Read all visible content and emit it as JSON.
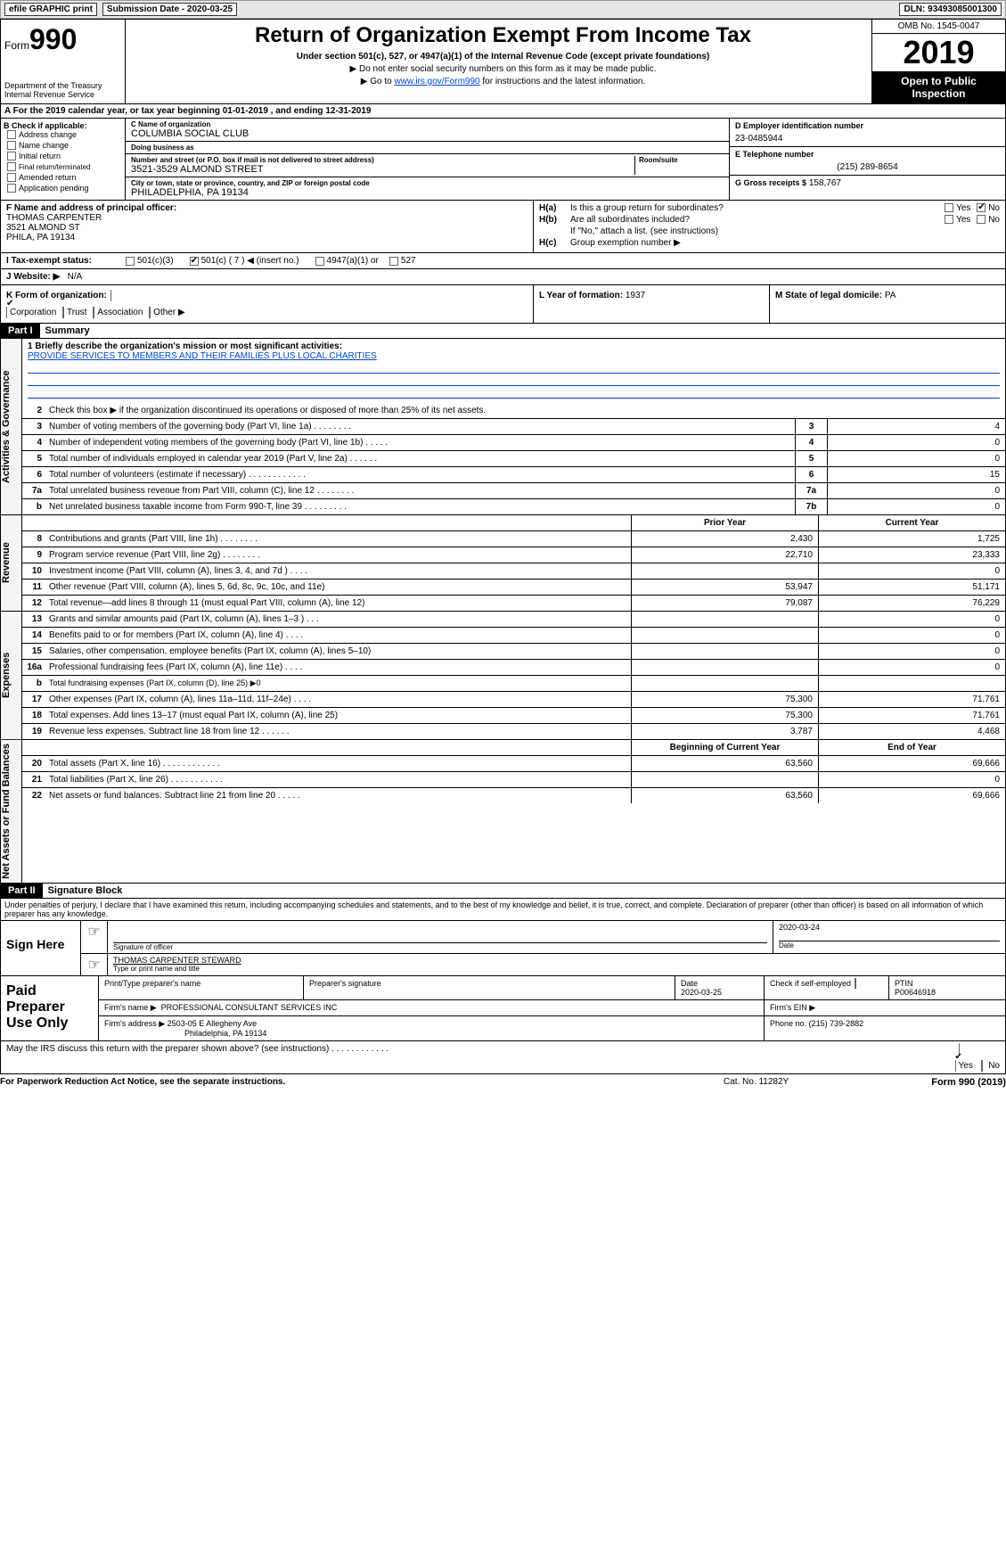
{
  "topbar": {
    "efile": "efile GRAPHIC print",
    "submission": "Submission Date - 2020-03-25",
    "dln": "DLN: 93493085001300"
  },
  "header": {
    "form_prefix": "Form",
    "form_number": "990",
    "dept1": "Department of the Treasury",
    "dept2": "Internal Revenue Service",
    "title": "Return of Organization Exempt From Income Tax",
    "subtitle": "Under section 501(c), 527, or 4947(a)(1) of the Internal Revenue Code (except private foundations)",
    "note1": "▶ Do not enter social security numbers on this form as it may be made public.",
    "note2_pre": "▶ Go to ",
    "note2_link": "www.irs.gov/Form990",
    "note2_post": " for instructions and the latest information.",
    "omb": "OMB No. 1545-0047",
    "year": "2019",
    "open": "Open to Public Inspection"
  },
  "row_a": "A   For the 2019 calendar year, or tax year beginning 01-01-2019        , and ending 12-31-2019",
  "b": {
    "label": "B Check if applicable:",
    "items": [
      "Address change",
      "Name change",
      "Initial return",
      "Final return/terminated",
      "Amended return",
      "Application pending"
    ]
  },
  "c": {
    "name_label": "C Name of organization",
    "name": "COLUMBIA SOCIAL CLUB",
    "dba_label": "Doing business as",
    "dba": "",
    "addr_label": "Number and street (or P.O. box if mail is not delivered to street address)",
    "addr": "3521-3529 ALMOND STREET",
    "room_label": "Room/suite",
    "city_label": "City or town, state or province, country, and ZIP or foreign postal code",
    "city": "PHILADELPHIA, PA  19134"
  },
  "d": {
    "label": "D Employer identification number",
    "val": "23-0485944"
  },
  "e": {
    "label": "E Telephone number",
    "val": "(215) 289-8654"
  },
  "g": {
    "label": "G Gross receipts $",
    "val": "158,767"
  },
  "f": {
    "label": "F  Name and address of principal officer:",
    "name": "THOMAS CARPENTER",
    "addr1": "3521 ALMOND ST",
    "addr2": "PHILA, PA  19134"
  },
  "h": {
    "a_label": "H(a)",
    "a_text": "Is this a group return for subordinates?",
    "b_label": "H(b)",
    "b_text": "Are all subordinates included?",
    "b_note": "If \"No,\" attach a list. (see instructions)",
    "c_label": "H(c)",
    "c_text": "Group exemption number ▶",
    "yes": "Yes",
    "no": "No"
  },
  "i": {
    "label": "I    Tax-exempt status:",
    "opts": [
      "501(c)(3)",
      "501(c) ( 7 ) ◀ (insert no.)",
      "4947(a)(1) or",
      "527"
    ],
    "checked_idx": 1
  },
  "j": {
    "label": "J    Website: ▶",
    "val": "N/A"
  },
  "k": {
    "label": "K Form of organization:",
    "opts": [
      "Corporation",
      "Trust",
      "Association",
      "Other ▶"
    ],
    "checked_idx": 0
  },
  "l": {
    "label": "L Year of formation:",
    "val": "1937"
  },
  "m": {
    "label": "M State of legal domicile:",
    "val": "PA"
  },
  "part1": {
    "label": "Part I",
    "title": "Summary"
  },
  "summary": {
    "line1_label": "1  Briefly describe the organization's mission or most significant activities:",
    "mission": "PROVIDE SERVICES TO MEMBERS AND THEIR FAMILIES PLUS LOCAL CHARITIES",
    "line2": "Check this box ▶     if the organization discontinued its operations or disposed of more than 25% of its net assets.",
    "tabs": {
      "governance": "Activities & Governance",
      "revenue": "Revenue",
      "expenses": "Expenses",
      "netassets": "Net Assets or Fund Balances"
    },
    "gov_lines": [
      {
        "n": "3",
        "d": "Number of voting members of the governing body (Part VI, line 1a)   .     .     .     .     .     .     .     .",
        "box": "3",
        "v": "4"
      },
      {
        "n": "4",
        "d": "Number of independent voting members of the governing body (Part VI, line 1b)   .     .     .     .     .",
        "box": "4",
        "v": "0"
      },
      {
        "n": "5",
        "d": "Total number of individuals employed in calendar year 2019 (Part V, line 2a)   .     .     .     .     .     .",
        "box": "5",
        "v": "0"
      },
      {
        "n": "6",
        "d": "Total number of volunteers (estimate if necessary)   .     .     .     .     .     .     .     .     .     .     .     .",
        "box": "6",
        "v": "15"
      },
      {
        "n": "7a",
        "d": "Total unrelated business revenue from Part VIII, column (C), line 12   .     .     .     .     .     .     .     .",
        "box": "7a",
        "v": "0"
      },
      {
        "n": "b",
        "d": "Net unrelated business taxable income from Form 990-T, line 39   .     .     .     .     .     .     .     .     .",
        "box": "7b",
        "v": "0"
      }
    ],
    "py_label": "Prior Year",
    "cy_label": "Current Year",
    "rev_lines": [
      {
        "n": "8",
        "d": "Contributions and grants (Part VIII, line 1h)   .     .     .     .     .     .     .     .",
        "py": "2,430",
        "cy": "1,725"
      },
      {
        "n": "9",
        "d": "Program service revenue (Part VIII, line 2g)   .     .     .     .     .     .     .     .",
        "py": "22,710",
        "cy": "23,333"
      },
      {
        "n": "10",
        "d": "Investment income (Part VIII, column (A), lines 3, 4, and 7d )   .     .     .     .",
        "py": "",
        "cy": "0"
      },
      {
        "n": "11",
        "d": "Other revenue (Part VIII, column (A), lines 5, 6d, 8c, 9c, 10c, and 11e)",
        "py": "53,947",
        "cy": "51,171"
      },
      {
        "n": "12",
        "d": "Total revenue—add lines 8 through 11 (must equal Part VIII, column (A), line 12)",
        "py": "79,087",
        "cy": "76,229"
      }
    ],
    "exp_lines": [
      {
        "n": "13",
        "d": "Grants and similar amounts paid (Part IX, column (A), lines 1–3 )   .     .     .",
        "py": "",
        "cy": "0"
      },
      {
        "n": "14",
        "d": "Benefits paid to or for members (Part IX, column (A), line 4)   .     .     .     .",
        "py": "",
        "cy": "0"
      },
      {
        "n": "15",
        "d": "Salaries, other compensation, employee benefits (Part IX, column (A), lines 5–10)",
        "py": "",
        "cy": "0"
      },
      {
        "n": "16a",
        "d": "Professional fundraising fees (Part IX, column (A), line 11e)   .     .     .     .",
        "py": "",
        "cy": "0"
      },
      {
        "n": "b",
        "d": "Total fundraising expenses (Part IX, column (D), line 25) ▶0",
        "py": "GRAY",
        "cy": "GRAY"
      },
      {
        "n": "17",
        "d": "Other expenses (Part IX, column (A), lines 11a–11d, 11f–24e)   .     .     .     .",
        "py": "75,300",
        "cy": "71,761"
      },
      {
        "n": "18",
        "d": "Total expenses. Add lines 13–17 (must equal Part IX, column (A), line 25)",
        "py": "75,300",
        "cy": "71,761"
      },
      {
        "n": "19",
        "d": "Revenue less expenses. Subtract line 18 from line 12   .     .     .     .     .     .",
        "py": "3,787",
        "cy": "4,468"
      }
    ],
    "boy_label": "Beginning of Current Year",
    "eoy_label": "End of Year",
    "na_lines": [
      {
        "n": "20",
        "d": "Total assets (Part X, line 16)   .     .     .     .     .     .     .     .     .     .     .     .",
        "py": "63,560",
        "cy": "69,666"
      },
      {
        "n": "21",
        "d": "Total liabilities (Part X, line 26)   .     .     .     .     .     .     .     .     .     .     .",
        "py": "",
        "cy": "0"
      },
      {
        "n": "22",
        "d": "Net assets or fund balances. Subtract line 21 from line 20   .     .     .     .     .",
        "py": "63,560",
        "cy": "69,666"
      }
    ]
  },
  "part2": {
    "label": "Part II",
    "title": "Signature Block"
  },
  "penalties": "Under penalties of perjury, I declare that I have examined this return, including accompanying schedules and statements, and to the best of my knowledge and belief, it is true, correct, and complete. Declaration of preparer (other than officer) is based on all information of which preparer has any knowledge.",
  "sign": {
    "label": "Sign Here",
    "sig_officer": "Signature of officer",
    "date_val": "2020-03-24",
    "date_label": "Date",
    "name": "THOMAS CARPENTER  STEWARD",
    "name_label": "Type or print name and title"
  },
  "paid": {
    "label": "Paid Preparer Use Only",
    "h_name": "Print/Type preparer's name",
    "h_sig": "Preparer's signature",
    "h_date": "Date",
    "date_val": "2020-03-25",
    "h_check": "Check        if self-employed",
    "h_ptin": "PTIN",
    "ptin": "P00646918",
    "firm_name_l": "Firm's name      ▶",
    "firm_name": "PROFESSIONAL CONSULTANT SERVICES INC",
    "firm_ein_l": "Firm's EIN ▶",
    "firm_addr_l": "Firm's address ▶",
    "firm_addr1": "2503-05 E Allegheny Ave",
    "firm_addr2": "Philadelphia, PA  19134",
    "phone_l": "Phone no.",
    "phone": "(215) 739-2882"
  },
  "discuss": {
    "text": "May the IRS discuss this return with the preparer shown above? (see instructions)   .     .     .     .     .     .     .     .     .     .     .     .",
    "yes": "Yes",
    "no": "No"
  },
  "footer": {
    "pra": "For Paperwork Reduction Act Notice, see the separate instructions.",
    "cat": "Cat. No. 11282Y",
    "form": "Form 990 (2019)"
  }
}
